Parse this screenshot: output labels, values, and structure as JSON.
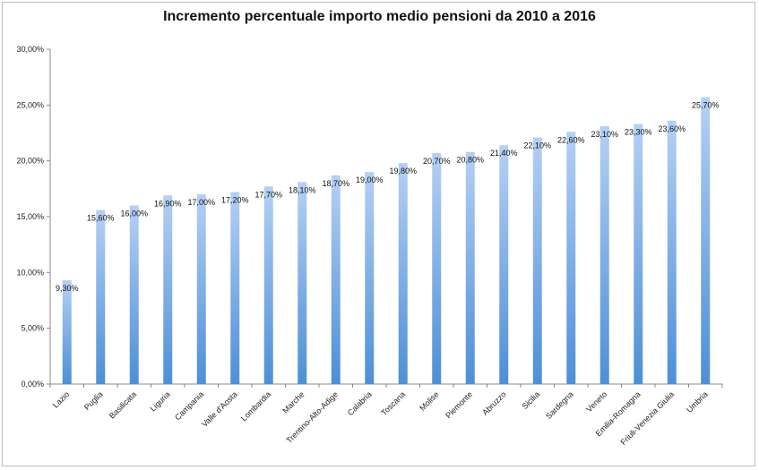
{
  "chart_data": {
    "type": "bar",
    "title": "Incremento percentuale importo medio pensioni da 2010 a 2016",
    "xlabel": "",
    "ylabel": "",
    "ylim": [
      0,
      30
    ],
    "y_ticks": [
      "0,00%",
      "5,00%",
      "10,00%",
      "15,00%",
      "20,00%",
      "25,00%",
      "30,00%"
    ],
    "grid": false,
    "legend": "none",
    "bar_color_top": "#b5d0f4",
    "bar_color_bottom": "#4d8fd6",
    "categories": [
      "Lazio",
      "Puglia",
      "Basilicata",
      "Liguria",
      "Campania",
      "Valle d'Aosta",
      "Lombardia",
      "Marche",
      "Trentino-Alto-Adige",
      "Calabria",
      "Toscana",
      "Molise",
      "Piemonte",
      "Abruzzo",
      "Sicilia",
      "Sardegna",
      "Veneto",
      "Emilia-Romagna",
      "Friuli-Venezia Giulia",
      "Umbria"
    ],
    "values": [
      9.3,
      15.6,
      16.0,
      16.9,
      17.0,
      17.2,
      17.7,
      18.1,
      18.7,
      19.0,
      19.8,
      20.7,
      20.8,
      21.4,
      22.1,
      22.6,
      23.1,
      23.3,
      23.6,
      25.7
    ],
    "data_labels": [
      "9,30%",
      "15,60%",
      "16,00%",
      "16,90%",
      "17,00%",
      "17,20%",
      "17,70%",
      "18,10%",
      "18,70%",
      "19,00%",
      "19,80%",
      "20,70%",
      "20,80%",
      "21,40%",
      "22,10%",
      "22,60%",
      "23,10%",
      "23,30%",
      "23,60%",
      "25,70%"
    ]
  }
}
